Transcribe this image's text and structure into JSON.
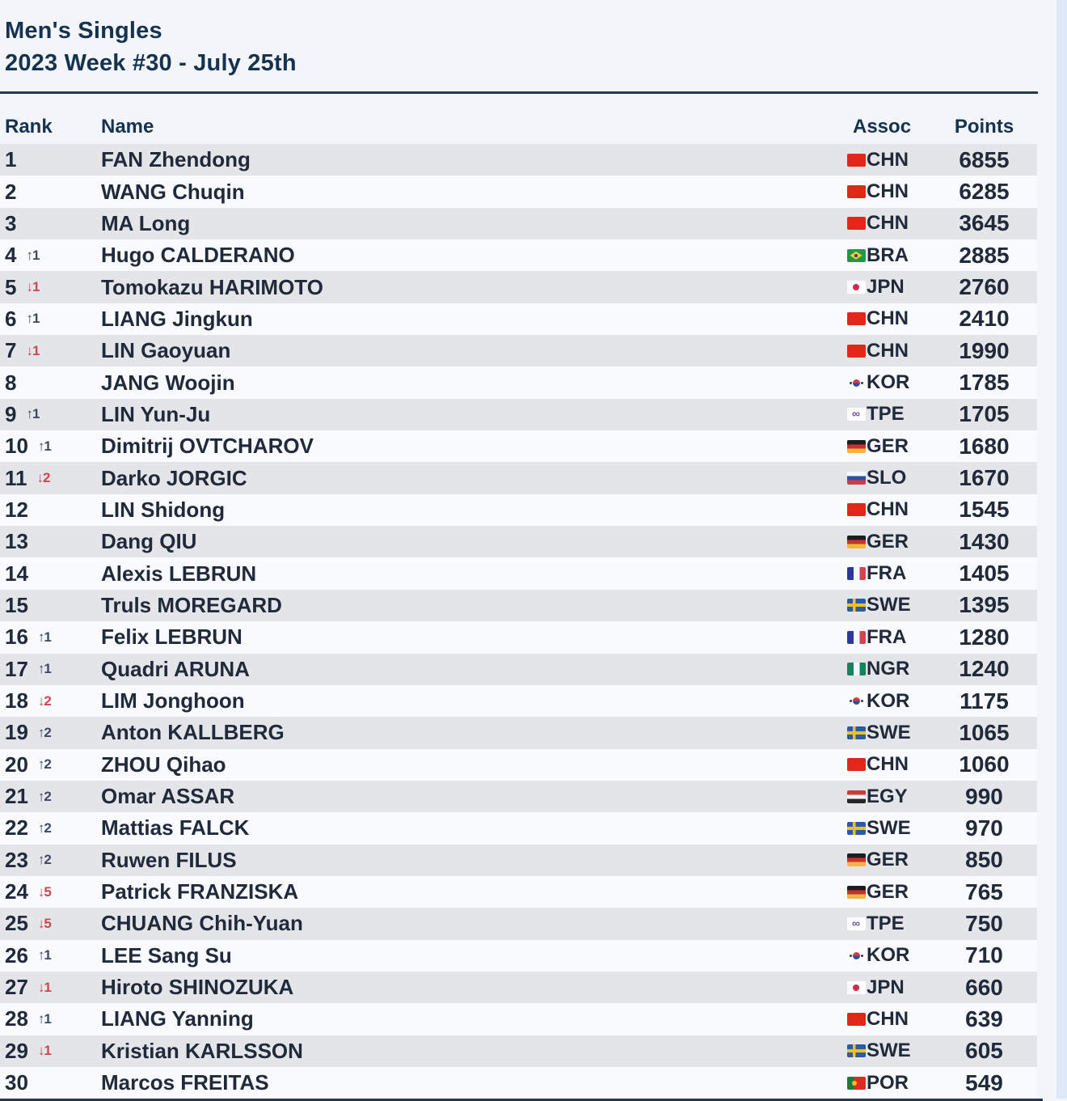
{
  "header": {
    "title": "Men's Singles",
    "subtitle": "2023 Week #30 - July 25th"
  },
  "table": {
    "columns": {
      "rank": "Rank",
      "name": "Name",
      "assoc": "Assoc",
      "points": "Points"
    },
    "rows": [
      {
        "rank": 1,
        "change": null,
        "name": "FAN Zhendong",
        "assoc": "CHN",
        "points": 6855
      },
      {
        "rank": 2,
        "change": null,
        "name": "WANG Chuqin",
        "assoc": "CHN",
        "points": 6285
      },
      {
        "rank": 3,
        "change": null,
        "name": "MA Long",
        "assoc": "CHN",
        "points": 3645
      },
      {
        "rank": 4,
        "change": {
          "direction": "up",
          "value": 1
        },
        "name": "Hugo CALDERANO",
        "assoc": "BRA",
        "points": 2885
      },
      {
        "rank": 5,
        "change": {
          "direction": "down",
          "value": 1
        },
        "name": "Tomokazu HARIMOTO",
        "assoc": "JPN",
        "points": 2760
      },
      {
        "rank": 6,
        "change": {
          "direction": "up",
          "value": 1
        },
        "name": "LIANG Jingkun",
        "assoc": "CHN",
        "points": 2410
      },
      {
        "rank": 7,
        "change": {
          "direction": "down",
          "value": 1
        },
        "name": "LIN Gaoyuan",
        "assoc": "CHN",
        "points": 1990
      },
      {
        "rank": 8,
        "change": null,
        "name": "JANG Woojin",
        "assoc": "KOR",
        "points": 1785
      },
      {
        "rank": 9,
        "change": {
          "direction": "up",
          "value": 1
        },
        "name": "LIN Yun-Ju",
        "assoc": "TPE",
        "points": 1705
      },
      {
        "rank": 10,
        "change": {
          "direction": "up",
          "value": 1
        },
        "name": "Dimitrij OVTCHAROV",
        "assoc": "GER",
        "points": 1680
      },
      {
        "rank": 11,
        "change": {
          "direction": "down",
          "value": 2
        },
        "name": "Darko JORGIC",
        "assoc": "SLO",
        "points": 1670
      },
      {
        "rank": 12,
        "change": null,
        "name": "LIN Shidong",
        "assoc": "CHN",
        "points": 1545
      },
      {
        "rank": 13,
        "change": null,
        "name": "Dang QIU",
        "assoc": "GER",
        "points": 1430
      },
      {
        "rank": 14,
        "change": null,
        "name": "Alexis LEBRUN",
        "assoc": "FRA",
        "points": 1405
      },
      {
        "rank": 15,
        "change": null,
        "name": "Truls MOREGARD",
        "assoc": "SWE",
        "points": 1395
      },
      {
        "rank": 16,
        "change": {
          "direction": "up",
          "value": 1
        },
        "name": "Felix LEBRUN",
        "assoc": "FRA",
        "points": 1280
      },
      {
        "rank": 17,
        "change": {
          "direction": "up",
          "value": 1
        },
        "name": "Quadri ARUNA",
        "assoc": "NGR",
        "points": 1240
      },
      {
        "rank": 18,
        "change": {
          "direction": "down",
          "value": 2
        },
        "name": "LIM Jonghoon",
        "assoc": "KOR",
        "points": 1175
      },
      {
        "rank": 19,
        "change": {
          "direction": "up",
          "value": 2
        },
        "name": "Anton KALLBERG",
        "assoc": "SWE",
        "points": 1065
      },
      {
        "rank": 20,
        "change": {
          "direction": "up",
          "value": 2
        },
        "name": "ZHOU Qihao",
        "assoc": "CHN",
        "points": 1060
      },
      {
        "rank": 21,
        "change": {
          "direction": "up",
          "value": 2
        },
        "name": "Omar ASSAR",
        "assoc": "EGY",
        "points": 990
      },
      {
        "rank": 22,
        "change": {
          "direction": "up",
          "value": 2
        },
        "name": "Mattias FALCK",
        "assoc": "SWE",
        "points": 970
      },
      {
        "rank": 23,
        "change": {
          "direction": "up",
          "value": 2
        },
        "name": "Ruwen FILUS",
        "assoc": "GER",
        "points": 850
      },
      {
        "rank": 24,
        "change": {
          "direction": "down",
          "value": 5
        },
        "name": "Patrick FRANZISKA",
        "assoc": "GER",
        "points": 765
      },
      {
        "rank": 25,
        "change": {
          "direction": "down",
          "value": 5
        },
        "name": "CHUANG Chih-Yuan",
        "assoc": "TPE",
        "points": 750
      },
      {
        "rank": 26,
        "change": {
          "direction": "up",
          "value": 1
        },
        "name": "LEE Sang Su",
        "assoc": "KOR",
        "points": 710
      },
      {
        "rank": 27,
        "change": {
          "direction": "down",
          "value": 1
        },
        "name": "Hiroto SHINOZUKA",
        "assoc": "JPN",
        "points": 660
      },
      {
        "rank": 28,
        "change": {
          "direction": "up",
          "value": 1
        },
        "name": "LIANG Yanning",
        "assoc": "CHN",
        "points": 639
      },
      {
        "rank": 29,
        "change": {
          "direction": "down",
          "value": 1
        },
        "name": "Kristian KARLSSON",
        "assoc": "SWE",
        "points": 605
      },
      {
        "rank": 30,
        "change": null,
        "name": "Marcos FREITAS",
        "assoc": "POR",
        "points": 549
      }
    ]
  },
  "colors": {
    "accent_navy": "#15324f",
    "up_indicator": "#3c4a61",
    "down_indicator": "#cb4852",
    "stripe_gray": "#e4e5e9"
  },
  "icons": {
    "up_arrow": "↑",
    "down_arrow": "↓"
  }
}
